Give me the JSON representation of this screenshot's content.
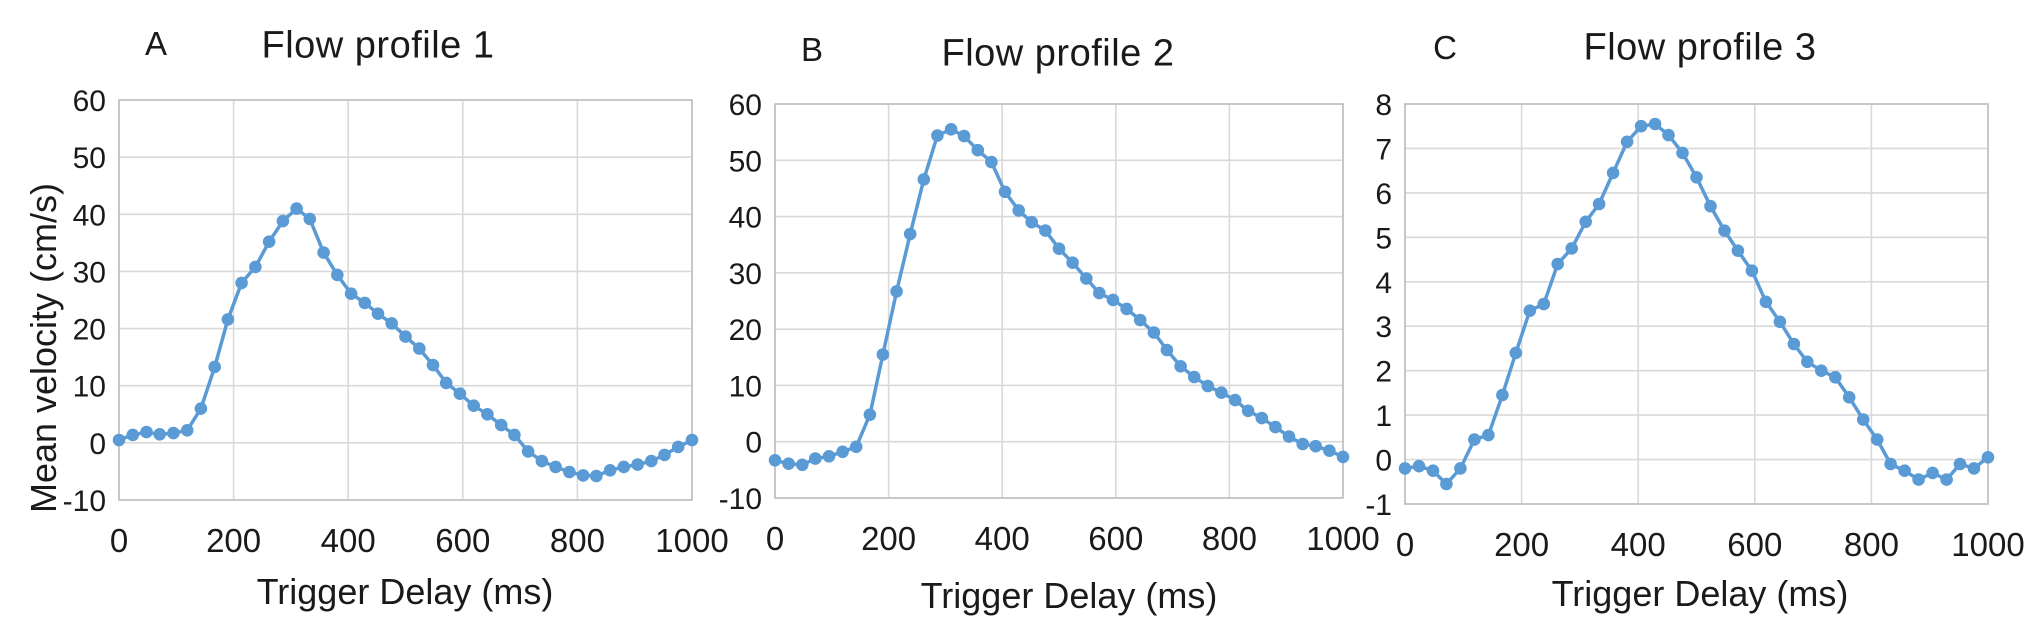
{
  "figure": {
    "background": "#ffffff"
  },
  "chart_data": [
    {
      "type": "line",
      "panel_label": "A",
      "title": "Flow profile 1",
      "xlabel": "Trigger Delay (ms)",
      "ylabel": "Mean velocity (cm/s)",
      "line_color": "#5B9BD5",
      "grid": true,
      "legend": "none",
      "xlim": [
        0,
        1000
      ],
      "ylim": [
        -10,
        60
      ],
      "ytick_step": 10,
      "yticks": [
        60,
        50,
        40,
        30,
        20,
        10,
        0,
        -10
      ],
      "xticks": [
        0,
        200,
        400,
        600,
        800,
        1000
      ],
      "x": [
        0,
        24,
        48,
        71,
        95,
        119,
        143,
        167,
        190,
        214,
        238,
        262,
        286,
        310,
        333,
        357,
        381,
        405,
        429,
        452,
        476,
        500,
        524,
        548,
        571,
        595,
        619,
        643,
        667,
        690,
        714,
        738,
        762,
        786,
        810,
        833,
        857,
        881,
        905,
        929,
        952,
        976,
        1000
      ],
      "values": [
        0.5,
        1.4,
        1.9,
        1.5,
        1.7,
        2.2,
        6.0,
        13.3,
        21.6,
        28.0,
        30.8,
        35.2,
        38.8,
        41.0,
        39.2,
        33.3,
        29.4,
        26.1,
        24.5,
        22.6,
        20.9,
        18.6,
        16.5,
        13.6,
        10.5,
        8.6,
        6.5,
        5.0,
        3.1,
        1.4,
        -1.5,
        -3.2,
        -4.2,
        -5.1,
        -5.7,
        -5.8,
        -4.8,
        -4.2,
        -3.8,
        -3.2,
        -2.1,
        -0.7,
        0.5
      ]
    },
    {
      "type": "line",
      "panel_label": "B",
      "title": "Flow profile 2",
      "xlabel": "Trigger Delay (ms)",
      "line_color": "#5B9BD5",
      "grid": true,
      "legend": "none",
      "xlim": [
        0,
        1000
      ],
      "ylim": [
        -10,
        60
      ],
      "ytick_step": 10,
      "yticks": [
        60,
        50,
        40,
        30,
        20,
        10,
        0,
        -10
      ],
      "xticks": [
        0,
        200,
        400,
        600,
        800,
        1000
      ],
      "x": [
        0,
        24,
        48,
        71,
        95,
        119,
        143,
        167,
        190,
        214,
        238,
        262,
        286,
        310,
        333,
        357,
        381,
        405,
        429,
        452,
        476,
        500,
        524,
        548,
        571,
        595,
        619,
        643,
        667,
        690,
        714,
        738,
        762,
        786,
        810,
        833,
        857,
        881,
        905,
        929,
        952,
        976,
        1000
      ],
      "values": [
        -3.3,
        -3.9,
        -4.1,
        -3.0,
        -2.6,
        -1.8,
        -0.9,
        4.8,
        15.5,
        26.7,
        36.9,
        46.6,
        54.4,
        55.5,
        54.3,
        51.8,
        49.7,
        44.4,
        41.1,
        39.0,
        37.5,
        34.3,
        31.8,
        29.0,
        26.4,
        25.2,
        23.6,
        21.6,
        19.4,
        16.3,
        13.4,
        11.5,
        9.9,
        8.7,
        7.4,
        5.5,
        4.2,
        2.6,
        0.9,
        -0.4,
        -0.8,
        -1.6,
        -2.7
      ]
    },
    {
      "type": "line",
      "panel_label": "C",
      "title": "Flow profile 3",
      "xlabel": "Trigger Delay (ms)",
      "line_color": "#5B9BD5",
      "grid": true,
      "legend": "none",
      "xlim": [
        0,
        1000
      ],
      "ylim": [
        -1,
        8
      ],
      "ytick_step": 1,
      "yticks": [
        8,
        7,
        6,
        5,
        4,
        3,
        2,
        1,
        0,
        -1
      ],
      "xticks": [
        0,
        200,
        400,
        600,
        800,
        1000
      ],
      "x": [
        0,
        24,
        48,
        71,
        95,
        119,
        143,
        167,
        190,
        214,
        238,
        262,
        286,
        310,
        333,
        357,
        381,
        405,
        429,
        452,
        476,
        500,
        524,
        548,
        571,
        595,
        619,
        643,
        667,
        690,
        714,
        738,
        762,
        786,
        810,
        833,
        857,
        881,
        905,
        929,
        952,
        976,
        1000
      ],
      "values": [
        -0.2,
        -0.15,
        -0.25,
        -0.55,
        -0.2,
        0.45,
        0.55,
        1.45,
        2.4,
        3.35,
        3.5,
        4.4,
        4.75,
        5.35,
        5.75,
        6.45,
        7.15,
        7.5,
        7.55,
        7.3,
        6.9,
        6.35,
        5.7,
        5.15,
        4.7,
        4.25,
        3.55,
        3.1,
        2.6,
        2.2,
        2.0,
        1.85,
        1.4,
        0.9,
        0.45,
        -0.1,
        -0.25,
        -0.45,
        -0.3,
        -0.45,
        -0.1,
        -0.2,
        0.05
      ]
    }
  ]
}
